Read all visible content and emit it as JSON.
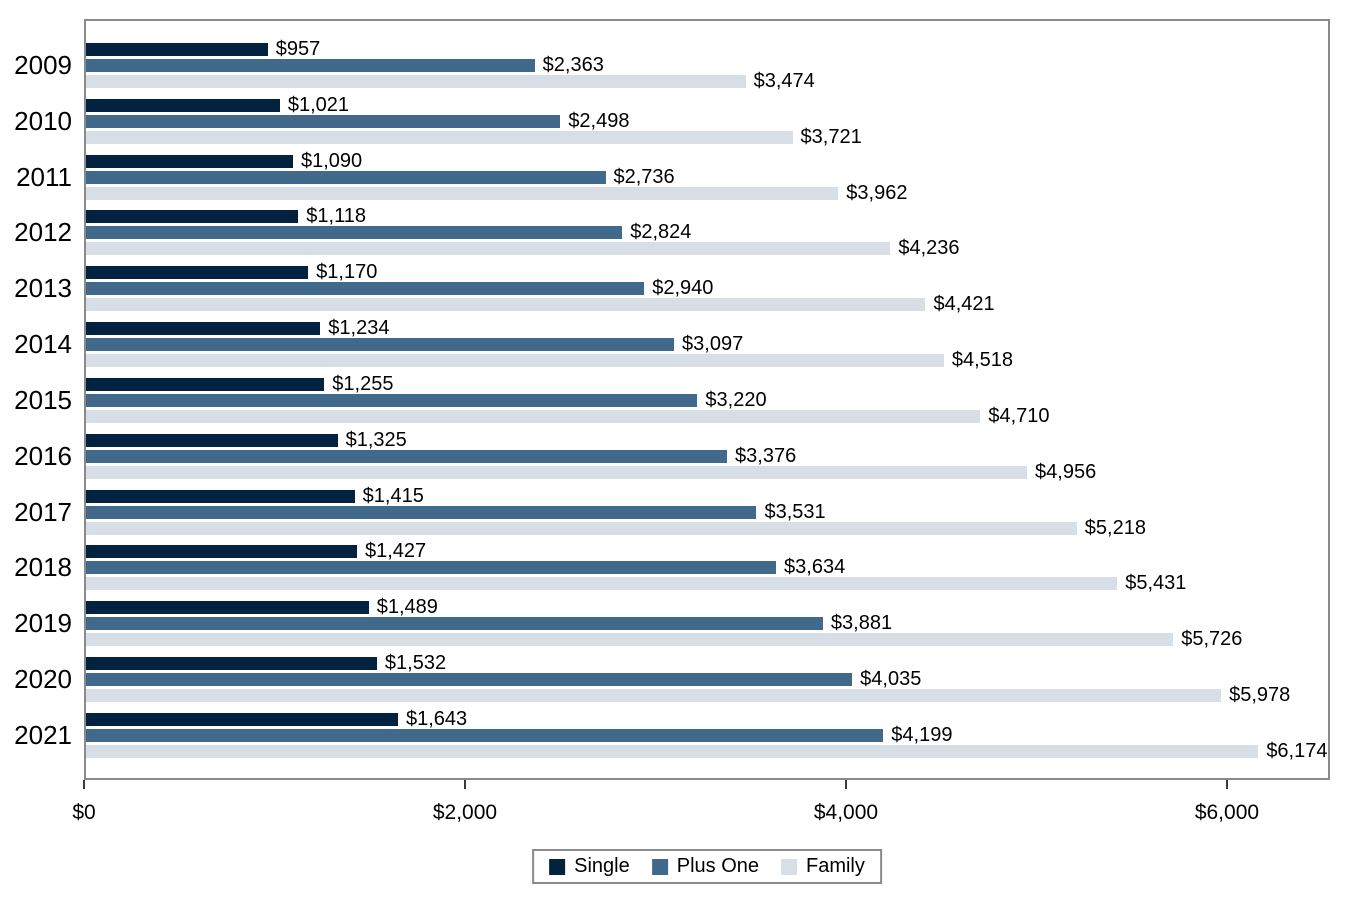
{
  "chart_data": {
    "type": "bar",
    "orientation": "horizontal",
    "title": "",
    "categories": [
      "2009",
      "2010",
      "2011",
      "2012",
      "2013",
      "2014",
      "2015",
      "2016",
      "2017",
      "2018",
      "2019",
      "2020",
      "2021"
    ],
    "series": [
      {
        "name": "Single",
        "color": "#032240",
        "values": [
          957,
          1021,
          1090,
          1118,
          1170,
          1234,
          1255,
          1325,
          1415,
          1427,
          1489,
          1532,
          1643
        ],
        "labels": [
          "$957",
          "$1,021",
          "$1,090",
          "$1,118",
          "$1,170",
          "$1,234",
          "$1,255",
          "$1,325",
          "$1,415",
          "$1,427",
          "$1,489",
          "$1,532",
          "$1,643"
        ]
      },
      {
        "name": "Plus One",
        "color": "#41698C",
        "values": [
          2363,
          2498,
          2736,
          2824,
          2940,
          3097,
          3220,
          3376,
          3531,
          3634,
          3881,
          4035,
          4199
        ],
        "labels": [
          "$2,363",
          "$2,498",
          "$2,736",
          "$2,824",
          "$2,940",
          "$3,097",
          "$3,220",
          "$3,376",
          "$3,531",
          "$3,634",
          "$3,881",
          "$4,035",
          "$4,199"
        ]
      },
      {
        "name": "Family",
        "color": "#D8DEE5",
        "values": [
          3474,
          3721,
          3962,
          4236,
          4421,
          4518,
          4710,
          4956,
          5218,
          5431,
          5726,
          5978,
          6174
        ],
        "labels": [
          "$3,474",
          "$3,721",
          "$3,962",
          "$4,236",
          "$4,421",
          "$4,518",
          "$4,710",
          "$4,956",
          "$5,218",
          "$5,431",
          "$5,726",
          "$5,978",
          "$6,174"
        ]
      }
    ],
    "x_axis": {
      "max": 6541,
      "ticks": [
        {
          "value": 0,
          "label": "$0"
        },
        {
          "value": 2000,
          "label": "$2,000"
        },
        {
          "value": 4000,
          "label": "$4,000"
        },
        {
          "value": 6000,
          "label": "$6,000"
        }
      ]
    },
    "legend": {
      "position": "bottom-center",
      "items": [
        "Single",
        "Plus One",
        "Family"
      ]
    },
    "colors": {
      "plot_border": "#8a8a8a",
      "tick": "#3a3a3a",
      "text": "#000000",
      "background": "#ffffff"
    }
  }
}
